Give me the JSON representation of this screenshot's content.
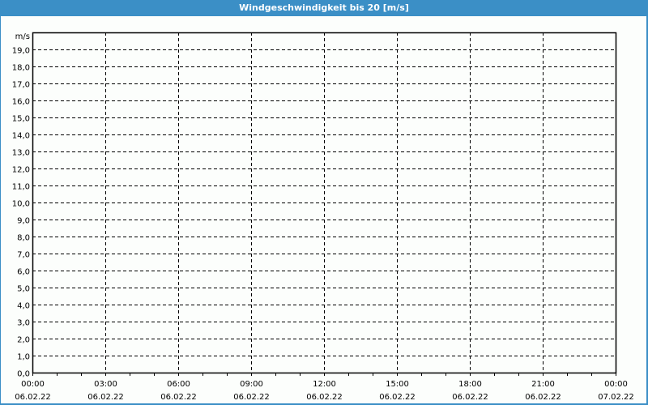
{
  "window": {
    "title": "Windgeschwindigkeit bis 20 [m/s]",
    "accent_color": "#3b8fc6"
  },
  "chart_data": {
    "type": "line",
    "title": "Windgeschwindigkeit bis 20 [m/s]",
    "ylabel": "m/s",
    "xlabel": "",
    "ylim": [
      0,
      20
    ],
    "xlim": [
      "06.02.22 00:00",
      "07.02.22 00:00"
    ],
    "yticks": [
      "0,0",
      "1,0",
      "2,0",
      "3,0",
      "4,0",
      "5,0",
      "6,0",
      "7,0",
      "8,0",
      "9,0",
      "10,0",
      "11,0",
      "12,0",
      "13,0",
      "14,0",
      "15,0",
      "16,0",
      "17,0",
      "18,0",
      "19,0"
    ],
    "xticks": [
      {
        "time": "00:00",
        "date": "06.02.22"
      },
      {
        "time": "03:00",
        "date": "06.02.22"
      },
      {
        "time": "06:00",
        "date": "06.02.22"
      },
      {
        "time": "09:00",
        "date": "06.02.22"
      },
      {
        "time": "12:00",
        "date": "06.02.22"
      },
      {
        "time": "15:00",
        "date": "06.02.22"
      },
      {
        "time": "18:00",
        "date": "06.02.22"
      },
      {
        "time": "21:00",
        "date": "06.02.22"
      },
      {
        "time": "00:00",
        "date": "07.02.22"
      }
    ],
    "minor_tick_interval_hours": 1,
    "grid": true,
    "grid_style": "dashed",
    "series": []
  }
}
